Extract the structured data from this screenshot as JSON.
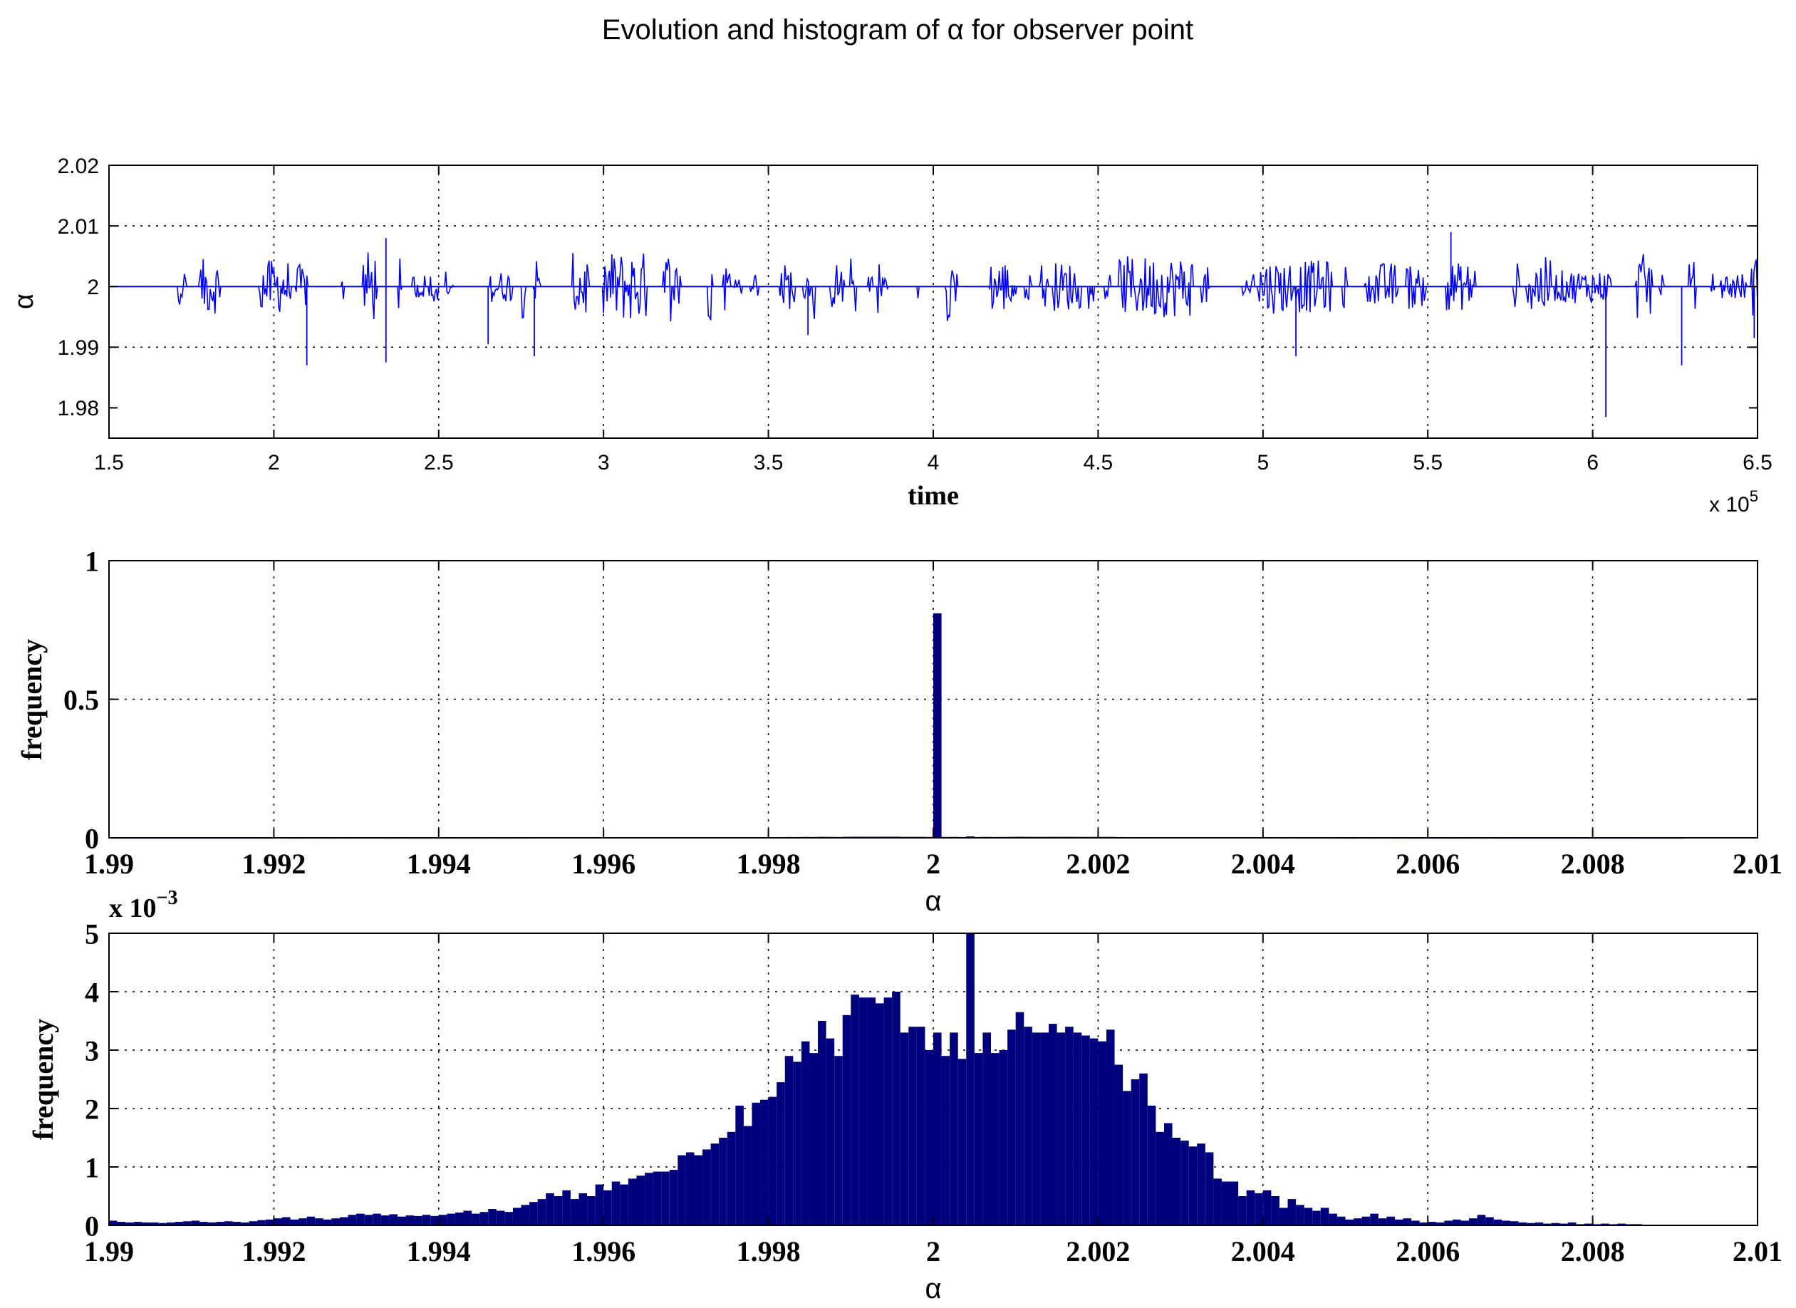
{
  "figure": {
    "title": "Evolution and histogram of α for observer point",
    "colors": {
      "line": "#0000ff",
      "bar": "#00007f",
      "axis": "#000000",
      "background": "#ffffff"
    }
  },
  "chart_data": [
    {
      "type": "line",
      "title": "",
      "xlabel": "time",
      "ylabel": "α",
      "x_exponent_label": "x 10",
      "x_exponent": "5",
      "xlim": [
        1.5,
        6.5
      ],
      "ylim": [
        1.975,
        2.02
      ],
      "xticks": [
        "1.5",
        "2",
        "2.5",
        "3",
        "3.5",
        "4",
        "4.5",
        "5",
        "5.5",
        "6",
        "6.5"
      ],
      "yticks": [
        "1.98",
        "1.99",
        "2",
        "2.01",
        "2.02"
      ],
      "grid": true,
      "series": [
        {
          "baseline": 2.0,
          "x_unit_scale": "x 10^5",
          "notable_spikes": [
            {
              "x": 2.1,
              "y": 1.987
            },
            {
              "x": 2.34,
              "y": 1.9875
            },
            {
              "x": 2.34,
              "y": 2.008
            },
            {
              "x": 2.65,
              "y": 1.9905
            },
            {
              "x": 2.79,
              "y": 1.9885
            },
            {
              "x": 3.62,
              "y": 1.992
            },
            {
              "x": 5.1,
              "y": 1.9885
            },
            {
              "x": 5.57,
              "y": 2.009
            },
            {
              "x": 6.04,
              "y": 1.9785
            },
            {
              "x": 6.27,
              "y": 1.987
            },
            {
              "x": 6.49,
              "y": 1.9915
            }
          ]
        }
      ]
    },
    {
      "type": "bar",
      "title": "",
      "xlabel": "α",
      "ylabel": "frequency",
      "xlim": [
        1.99,
        2.01
      ],
      "ylim": [
        0,
        1
      ],
      "xticks": [
        "1.99",
        "1.992",
        "1.994",
        "1.996",
        "1.998",
        "2",
        "2.002",
        "2.004",
        "2.006",
        "2.008",
        "2.01"
      ],
      "yticks": [
        "0",
        "0.5",
        "1"
      ],
      "grid": true,
      "bin_width": 0.0001,
      "peak": {
        "x": 2.0,
        "value": 0.81
      }
    },
    {
      "type": "bar",
      "title": "",
      "xlabel": "α",
      "ylabel": "frequency",
      "y_exponent_label": "x 10",
      "y_exponent": "−3",
      "xlim": [
        1.99,
        2.01
      ],
      "ylim": [
        0,
        5
      ],
      "xticks": [
        "1.99",
        "1.992",
        "1.994",
        "1.996",
        "1.998",
        "2",
        "2.002",
        "2.004",
        "2.006",
        "2.008",
        "2.01"
      ],
      "yticks": [
        "0",
        "1",
        "2",
        "3",
        "4",
        "5"
      ],
      "grid": true,
      "bin_start": 1.99,
      "bin_width": 0.0001,
      "values": [
        0.08,
        0.06,
        0.05,
        0.06,
        0.05,
        0.05,
        0.04,
        0.05,
        0.06,
        0.07,
        0.08,
        0.06,
        0.05,
        0.06,
        0.07,
        0.06,
        0.05,
        0.07,
        0.09,
        0.1,
        0.12,
        0.14,
        0.1,
        0.12,
        0.15,
        0.12,
        0.1,
        0.12,
        0.14,
        0.18,
        0.2,
        0.18,
        0.2,
        0.17,
        0.19,
        0.15,
        0.17,
        0.16,
        0.18,
        0.16,
        0.18,
        0.2,
        0.22,
        0.25,
        0.2,
        0.23,
        0.28,
        0.25,
        0.23,
        0.3,
        0.35,
        0.4,
        0.45,
        0.55,
        0.5,
        0.6,
        0.45,
        0.55,
        0.5,
        0.7,
        0.6,
        0.75,
        0.7,
        0.8,
        0.85,
        0.9,
        0.92,
        0.92,
        0.95,
        1.2,
        1.25,
        1.2,
        1.3,
        1.4,
        1.5,
        1.6,
        2.05,
        1.7,
        2.1,
        2.15,
        2.2,
        2.45,
        2.9,
        2.8,
        3.15,
        2.95,
        3.5,
        3.2,
        2.9,
        3.6,
        3.95,
        3.9,
        3.9,
        3.8,
        3.9,
        4.0,
        3.3,
        3.4,
        3.4,
        3.0,
        3.3,
        2.9,
        3.3,
        2.85,
        5.0,
        2.95,
        3.3,
        2.95,
        3.0,
        3.35,
        3.65,
        3.4,
        3.3,
        3.3,
        3.45,
        3.3,
        3.4,
        3.3,
        3.25,
        3.2,
        3.15,
        3.35,
        2.75,
        2.3,
        2.5,
        2.6,
        2.05,
        1.6,
        1.75,
        1.5,
        1.45,
        1.35,
        1.4,
        1.25,
        0.8,
        0.75,
        0.75,
        0.5,
        0.6,
        0.55,
        0.6,
        0.5,
        0.3,
        0.45,
        0.35,
        0.3,
        0.25,
        0.3,
        0.2,
        0.15,
        0.1,
        0.12,
        0.15,
        0.2,
        0.12,
        0.15,
        0.1,
        0.12,
        0.08,
        0.05,
        0.06,
        0.05,
        0.08,
        0.1,
        0.08,
        0.12,
        0.18,
        0.14,
        0.1,
        0.08,
        0.07,
        0.05,
        0.04,
        0.05,
        0.03,
        0.04,
        0.03,
        0.05,
        0.02,
        0.03,
        0.02,
        0.03,
        0.02,
        0.03,
        0.02,
        0.02,
        0.01,
        0.01,
        0.01,
        0.01,
        0.01,
        0.0,
        0.0,
        0.0,
        0.0,
        0.0,
        0.0,
        0.0,
        0.0,
        0.0
      ]
    }
  ]
}
